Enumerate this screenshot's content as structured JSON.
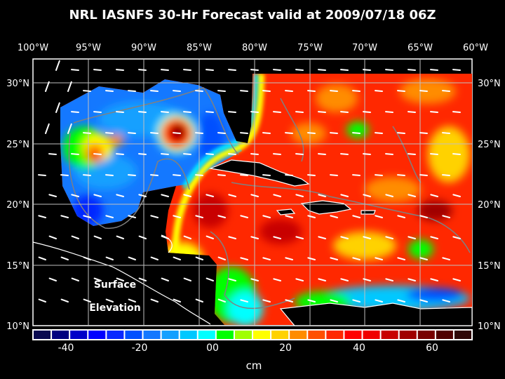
{
  "title": "NRL IASNFS  30-Hr Forecast valid at 2009/07/18 06Z",
  "map": {
    "lon_labels": [
      "100°W",
      "95°W",
      "90°W",
      "85°W",
      "80°W",
      "75°W",
      "70°W",
      "65°W",
      "60°W"
    ],
    "lat_labels": [
      "30°N",
      "25°N",
      "20°N",
      "15°N",
      "10°N"
    ],
    "lon_range": [
      -100,
      -60
    ],
    "lat_range": [
      10,
      30
    ],
    "annotation_line1": "Surface",
    "annotation_line2": "Elevation",
    "land_color": "#000000",
    "contour_color": "#808080",
    "wind_vector_color": "#ffffff"
  },
  "colorbar": {
    "min": -50,
    "max": 70,
    "step": 5,
    "tick_labels": [
      "-40",
      "-20",
      "00",
      "20",
      "40",
      "60"
    ],
    "tick_values": [
      -40,
      -20,
      0,
      20,
      40,
      60
    ],
    "unit": "cm",
    "colors": [
      "#0a0a50",
      "#000080",
      "#0000c8",
      "#0000ff",
      "#0a28ff",
      "#0050ff",
      "#1478ff",
      "#14a0ff",
      "#00c8ff",
      "#00ffff",
      "#00ff00",
      "#a0ff00",
      "#ffff00",
      "#ffd200",
      "#ff8c00",
      "#ff5000",
      "#ff2800",
      "#ff0000",
      "#f00000",
      "#c80000",
      "#a00000",
      "#780000",
      "#500000",
      "#300808"
    ]
  }
}
